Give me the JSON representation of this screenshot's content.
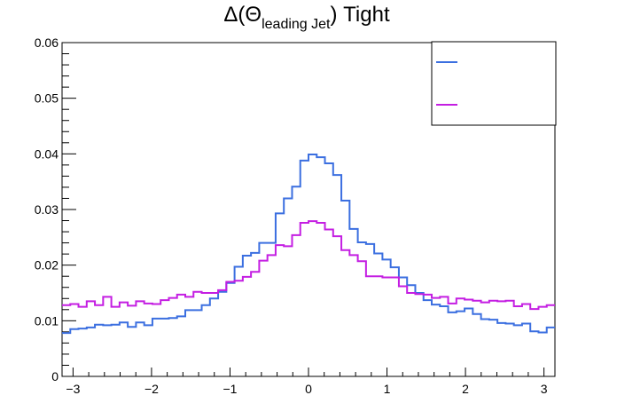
{
  "chart_data": {
    "type": "line",
    "title": {
      "prefix": "Δ(Θ",
      "subscript": "leading Jet",
      "suffix": ") Tight"
    },
    "xlabel": "",
    "ylabel": "",
    "xlim": [
      -3.14,
      3.14
    ],
    "ylim": [
      0,
      0.06
    ],
    "x_ticks": [
      -3,
      -2,
      -1,
      0,
      1,
      2,
      3
    ],
    "x_tick_labels": [
      "−3",
      "−2",
      "−1",
      "0",
      "1",
      "2",
      "3"
    ],
    "y_ticks": [
      0,
      0.01,
      0.02,
      0.03,
      0.04,
      0.05,
      0.06
    ],
    "y_tick_labels": [
      "0",
      "0.01",
      "0.02",
      "0.03",
      "0.04",
      "0.05",
      "0.06"
    ],
    "grid": false,
    "legend_position": "top-right",
    "bins": 60,
    "series": [
      {
        "name": "",
        "color": "#3b6fe0",
        "values": [
          0.0078,
          0.0085,
          0.0086,
          0.0088,
          0.0093,
          0.0092,
          0.0093,
          0.0097,
          0.0089,
          0.0097,
          0.0092,
          0.0104,
          0.0104,
          0.0105,
          0.0108,
          0.0119,
          0.0119,
          0.0128,
          0.014,
          0.0152,
          0.0168,
          0.0197,
          0.0217,
          0.0222,
          0.024,
          0.024,
          0.0293,
          0.032,
          0.0341,
          0.0388,
          0.0399,
          0.0394,
          0.0383,
          0.0362,
          0.0316,
          0.0265,
          0.0241,
          0.0238,
          0.0221,
          0.021,
          0.0196,
          0.0178,
          0.0164,
          0.015,
          0.0137,
          0.0129,
          0.0126,
          0.0115,
          0.0117,
          0.0122,
          0.0112,
          0.0103,
          0.0102,
          0.0096,
          0.0095,
          0.0092,
          0.0095,
          0.0081,
          0.0079,
          0.0088
        ]
      },
      {
        "name": "",
        "color": "#c41ee2",
        "values": [
          0.0128,
          0.013,
          0.0125,
          0.0135,
          0.0128,
          0.0143,
          0.0125,
          0.0133,
          0.0127,
          0.0135,
          0.0131,
          0.013,
          0.0137,
          0.0141,
          0.0147,
          0.0143,
          0.0152,
          0.015,
          0.015,
          0.0155,
          0.017,
          0.0172,
          0.0179,
          0.0188,
          0.0208,
          0.0218,
          0.0236,
          0.0234,
          0.0254,
          0.0276,
          0.0279,
          0.0276,
          0.0264,
          0.0252,
          0.0227,
          0.0218,
          0.0207,
          0.018,
          0.018,
          0.0178,
          0.0178,
          0.0162,
          0.015,
          0.0148,
          0.0147,
          0.0141,
          0.0143,
          0.0131,
          0.014,
          0.0138,
          0.0136,
          0.0133,
          0.0136,
          0.0135,
          0.0136,
          0.0126,
          0.013,
          0.0121,
          0.0125,
          0.0128
        ]
      }
    ]
  }
}
